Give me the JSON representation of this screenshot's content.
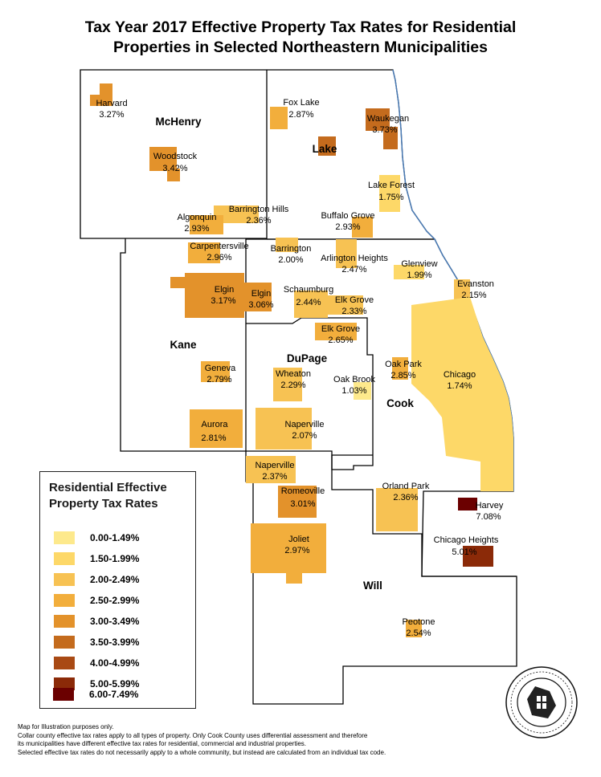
{
  "title": {
    "line1": "Tax Year 2017 Effective Property Tax Rates for Residential",
    "line2": "Properties in Selected Northeastern Municipalities"
  },
  "counties": {
    "mchenry": "McHenry",
    "lake": "Lake",
    "kane": "Kane",
    "dupage": "DuPage",
    "cook": "Cook",
    "will": "Will"
  },
  "municipalities": [
    {
      "name": "Harvard",
      "rate": "3.27%",
      "color": "#e3922b"
    },
    {
      "name": "Woodstock",
      "rate": "3.42%",
      "color": "#e3922b"
    },
    {
      "name": "Fox Lake",
      "rate": "2.87%",
      "color": "#f2ae3c"
    },
    {
      "name": "Waukegan",
      "rate": "3.73%",
      "color": "#c46b1d"
    },
    {
      "name": "Lake Forest",
      "rate": "1.75%",
      "color": "#fdd868"
    },
    {
      "name": "Barrington Hills",
      "rate": "2.36%",
      "color": "#f7c253"
    },
    {
      "name": "Algonquin",
      "rate": "2.93%",
      "color": "#f2ae3c"
    },
    {
      "name": "Buffalo Grove",
      "rate": "2.93%",
      "color": "#f2ae3c"
    },
    {
      "name": "Carpentersville",
      "rate": "2.96%",
      "color": "#f2ae3c"
    },
    {
      "name": "Barrington",
      "rate": "2.00%",
      "color": "#f7c253"
    },
    {
      "name": "Arlington Heights",
      "rate": "2.47%",
      "color": "#f7c253"
    },
    {
      "name": "Glenview",
      "rate": "1.99%",
      "color": "#fdd868"
    },
    {
      "name": "Evanston",
      "rate": "2.15%",
      "color": "#f7c253"
    },
    {
      "name": "Elgin",
      "rate": "3.17%",
      "color": "#e3922b"
    },
    {
      "name": "Elgin",
      "rate": "3.06%",
      "color": "#e3922b"
    },
    {
      "name": "Schaumburg",
      "rate": "2.44%",
      "color": "#f7c253"
    },
    {
      "name": "Elk Grove",
      "rate": "2.33%",
      "color": "#f7c253"
    },
    {
      "name": "Elk Grove",
      "rate": "2.65%",
      "color": "#f2ae3c"
    },
    {
      "name": "Oak Park",
      "rate": "2.85%",
      "color": "#f2ae3c"
    },
    {
      "name": "Chicago",
      "rate": "1.74%",
      "color": "#fdd868"
    },
    {
      "name": "Geneva",
      "rate": "2.79%",
      "color": "#f2ae3c"
    },
    {
      "name": "Wheaton",
      "rate": "2.29%",
      "color": "#f7c253"
    },
    {
      "name": "Oak Brook",
      "rate": "1.03%",
      "color": "#fde98c"
    },
    {
      "name": "Aurora",
      "rate": "2.81%",
      "color": "#f2ae3c"
    },
    {
      "name": "Naperville",
      "rate": "2.07%",
      "color": "#f7c253"
    },
    {
      "name": "Naperville",
      "rate": "2.37%",
      "color": "#f7c253"
    },
    {
      "name": "Romeoville",
      "rate": "3.01%",
      "color": "#e3922b"
    },
    {
      "name": "Orland Park",
      "rate": "2.36%",
      "color": "#f7c253"
    },
    {
      "name": "Harvey",
      "rate": "7.08%",
      "color": "#6b0000"
    },
    {
      "name": "Chicago Heights",
      "rate": "5.01%",
      "color": "#8b2a08"
    },
    {
      "name": "Joliet",
      "rate": "2.97%",
      "color": "#f2ae3c"
    },
    {
      "name": "Peotone",
      "rate": "2.54%",
      "color": "#f2ae3c"
    }
  ],
  "legend": {
    "title_line1": "Residential Effective",
    "title_line2": "Property Tax Rates",
    "items": [
      {
        "label": "0.00-1.49%",
        "color": "#fde98c"
      },
      {
        "label": "1.50-1.99%",
        "color": "#fdd868"
      },
      {
        "label": "2.00-2.49%",
        "color": "#f7c253"
      },
      {
        "label": "2.50-2.99%",
        "color": "#f2ae3c"
      },
      {
        "label": "3.00-3.49%",
        "color": "#e3922b"
      },
      {
        "label": "3.50-3.99%",
        "color": "#c46b1d"
      },
      {
        "label": "4.00-4.99%",
        "color": "#a94a14"
      },
      {
        "label": "5.00-5.99%",
        "color": "#8b2a08"
      },
      {
        "label": "6.00-7.49%",
        "color": "#6b0000"
      }
    ]
  },
  "notes": [
    "Map for Illustration purposes only.",
    "Collar county effective tax rates apply to all types of property. Only Cook County uses differential assessment and therefore",
    "its municipalities have different effective tax rates for residential, commercial and industrial properties.",
    "Selected effective tax rates do not necessarily apply to a whole community, but instead are calculated  from an individual tax code."
  ],
  "seal_icon": "civic-federation-seal-icon",
  "colors": {
    "boundary": "#000000",
    "lakeshore": "#4a7bb5"
  }
}
